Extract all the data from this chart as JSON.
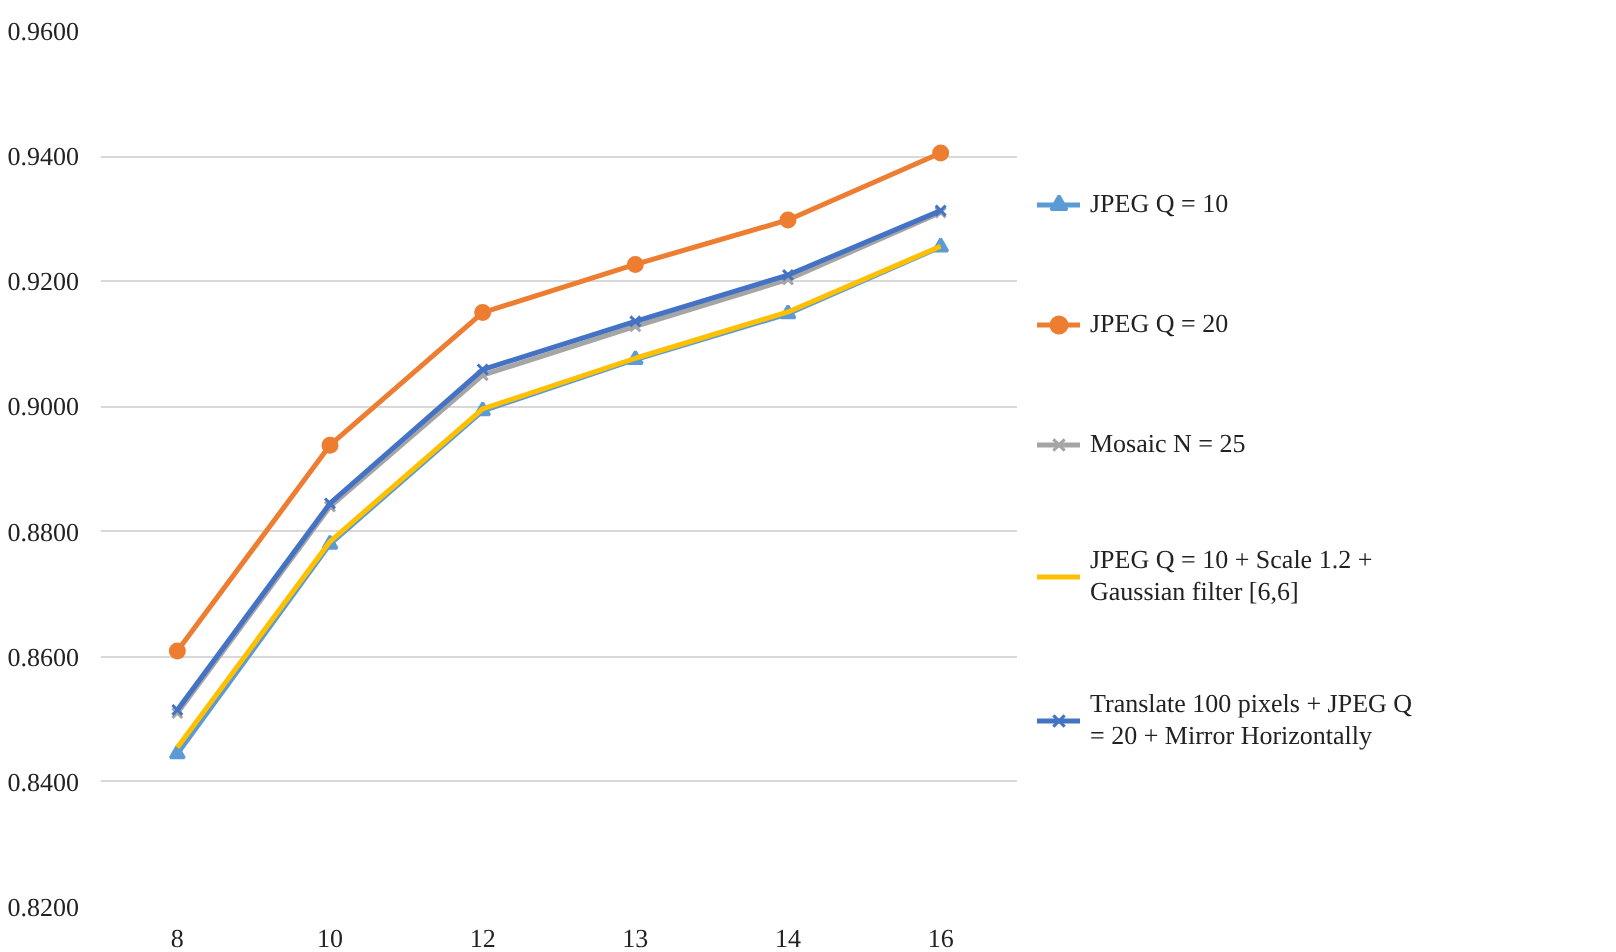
{
  "chart_data": {
    "type": "line",
    "categories": [
      "8",
      "10",
      "12",
      "13",
      "14",
      "16"
    ],
    "ylim": [
      0.82,
      0.96
    ],
    "yticks": [
      {
        "value": 0.82,
        "label": "0.8200"
      },
      {
        "value": 0.84,
        "label": "0.8400"
      },
      {
        "value": 0.86,
        "label": "0.8600"
      },
      {
        "value": 0.88,
        "label": "0.8800"
      },
      {
        "value": 0.9,
        "label": "0.9000"
      },
      {
        "value": 0.92,
        "label": "0.9200"
      },
      {
        "value": 0.94,
        "label": "0.9400"
      },
      {
        "value": 0.96,
        "label": "0.9600"
      }
    ],
    "grid": "y",
    "legend": "right",
    "line_style": "solid",
    "series": [
      {
        "name": "JPEG Q = 10",
        "color": "#5b9bd5",
        "marker": "triangle",
        "values": [
          0.8445,
          0.878,
          0.8993,
          0.9075,
          0.9148,
          0.9255
        ]
      },
      {
        "name": "JPEG Q = 20",
        "color": "#ed7d31",
        "marker": "circle",
        "values": [
          0.8609,
          0.8938,
          0.915,
          0.9227,
          0.9298,
          0.9405
        ]
      },
      {
        "name": "Mosaic N = 25",
        "color": "#a5a5a5",
        "marker": "cross",
        "values": [
          0.851,
          0.884,
          0.905,
          0.9128,
          0.9203,
          0.931
        ]
      },
      {
        "name": "JPEG Q = 10 + Scale 1.2 + Gaussian filter [6,6]",
        "color": "#ffc000",
        "marker": "none",
        "values": [
          0.8455,
          0.8784,
          0.8996,
          0.9077,
          0.9151,
          0.9256
        ]
      },
      {
        "name": "Translate 100 pixels + JPEG Q = 20 + Mirror Horizontally",
        "color": "#4472c4",
        "marker": "cross",
        "values": [
          0.8515,
          0.8845,
          0.9059,
          0.9136,
          0.921,
          0.9313
        ]
      }
    ]
  }
}
